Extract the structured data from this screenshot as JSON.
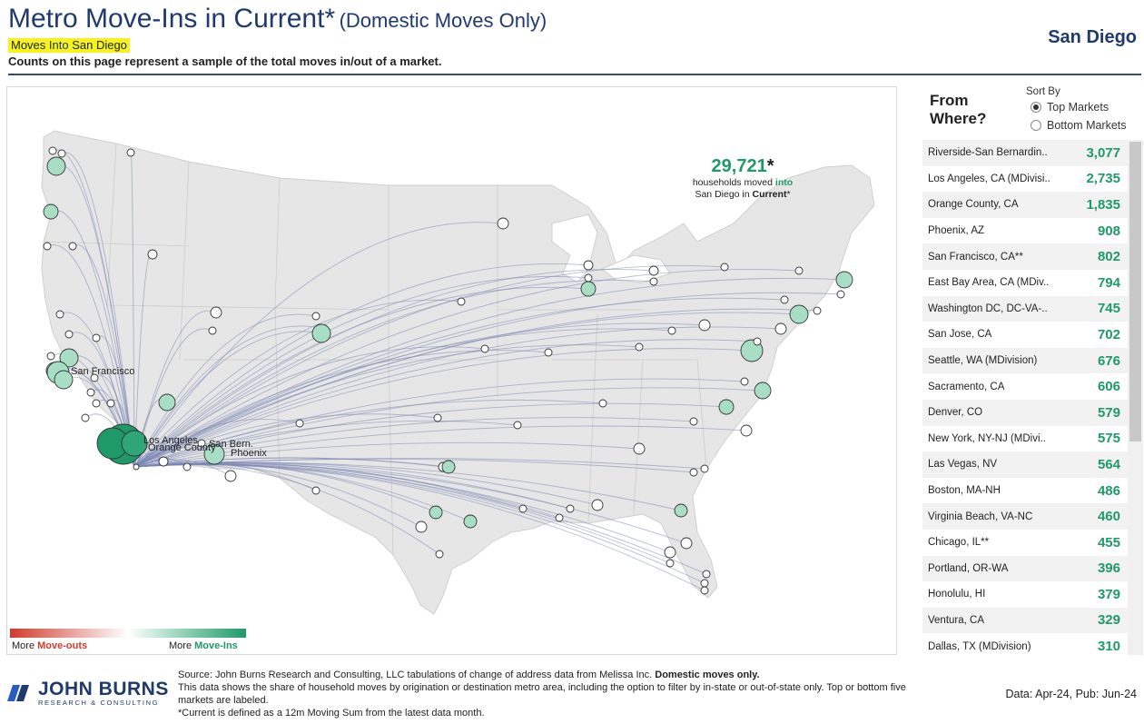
{
  "header": {
    "title_main": "Metro Move-Ins in Current*",
    "title_suffix": "(Domestic Moves Only)",
    "subtitle_pre": "Moves ",
    "subtitle_em": "Into",
    "subtitle_post": " San Diego",
    "note": "Counts on this page represent a sample of the total moves in/out of a market.",
    "market": "San Diego"
  },
  "map": {
    "total_value": "29,721",
    "total_star": "*",
    "total_line1_pre": "households moved ",
    "total_line1_em": "into",
    "total_line2_pre": "San Diego in ",
    "total_line2_bold": "Current",
    "total_line2_post": "*",
    "labels": {
      "san_francisco": "San Francisco",
      "los_angeles": "Los Angeles",
      "san_bern": "San Bern.",
      "orange_county": "Orange County",
      "phoenix": "Phoenix"
    },
    "colors": {
      "move_in": "#1e9a68",
      "move_out": "#d23b2e",
      "line": "#6a7aa8"
    }
  },
  "legend": {
    "left_pre": "More ",
    "left_em": "Move-outs",
    "right_pre": "More ",
    "right_em": "Move-Ins"
  },
  "panel": {
    "title": "From Where?",
    "sort_label": "Sort By",
    "sort_options": [
      {
        "label": "Top Markets",
        "selected": true
      },
      {
        "label": "Bottom Markets",
        "selected": false
      }
    ],
    "rows": [
      {
        "name": "Riverside-San Bernardin..",
        "value": "3,077"
      },
      {
        "name": "Los Angeles, CA (MDivisi..",
        "value": "2,735"
      },
      {
        "name": "Orange County, CA",
        "value": "1,835"
      },
      {
        "name": "Phoenix, AZ",
        "value": "908"
      },
      {
        "name": "San Francisco, CA**",
        "value": "802"
      },
      {
        "name": "East Bay Area, CA (MDiv..",
        "value": "794"
      },
      {
        "name": "Washington DC, DC-VA-..",
        "value": "745"
      },
      {
        "name": "San Jose, CA",
        "value": "702"
      },
      {
        "name": "Seattle, WA (MDivision)",
        "value": "676"
      },
      {
        "name": "Sacramento, CA",
        "value": "606"
      },
      {
        "name": "Denver, CO",
        "value": "579"
      },
      {
        "name": "New York, NY-NJ (MDivi..",
        "value": "575"
      },
      {
        "name": "Las Vegas, NV",
        "value": "564"
      },
      {
        "name": "Boston, MA-NH",
        "value": "486"
      },
      {
        "name": "Virginia Beach, VA-NC",
        "value": "460"
      },
      {
        "name": "Chicago, IL**",
        "value": "455"
      },
      {
        "name": "Portland, OR-WA",
        "value": "396"
      },
      {
        "name": "Honolulu, HI",
        "value": "379"
      },
      {
        "name": "Ventura, CA",
        "value": "329"
      },
      {
        "name": "Dallas, TX (MDivision)",
        "value": "310"
      }
    ]
  },
  "footer": {
    "logo_name": "JOHN BURNS",
    "logo_sub": "RESEARCH & CONSULTING",
    "source_pre": "Source: John Burns Research and Consulting, LLC tabulations of change of address data from Melissa Inc. ",
    "source_bold": "Domestic moves only.",
    "source_line2": "This data shows the share of household moves by origination or destination metro area, including the option to filter by in-state or out-of-state only. Top or bottom five markets are labeled.",
    "source_line3": "*Current is defined as a 12m Moving Sum from the latest data month.",
    "dates": "Data: Apr-24, Pub: Jun-24"
  }
}
